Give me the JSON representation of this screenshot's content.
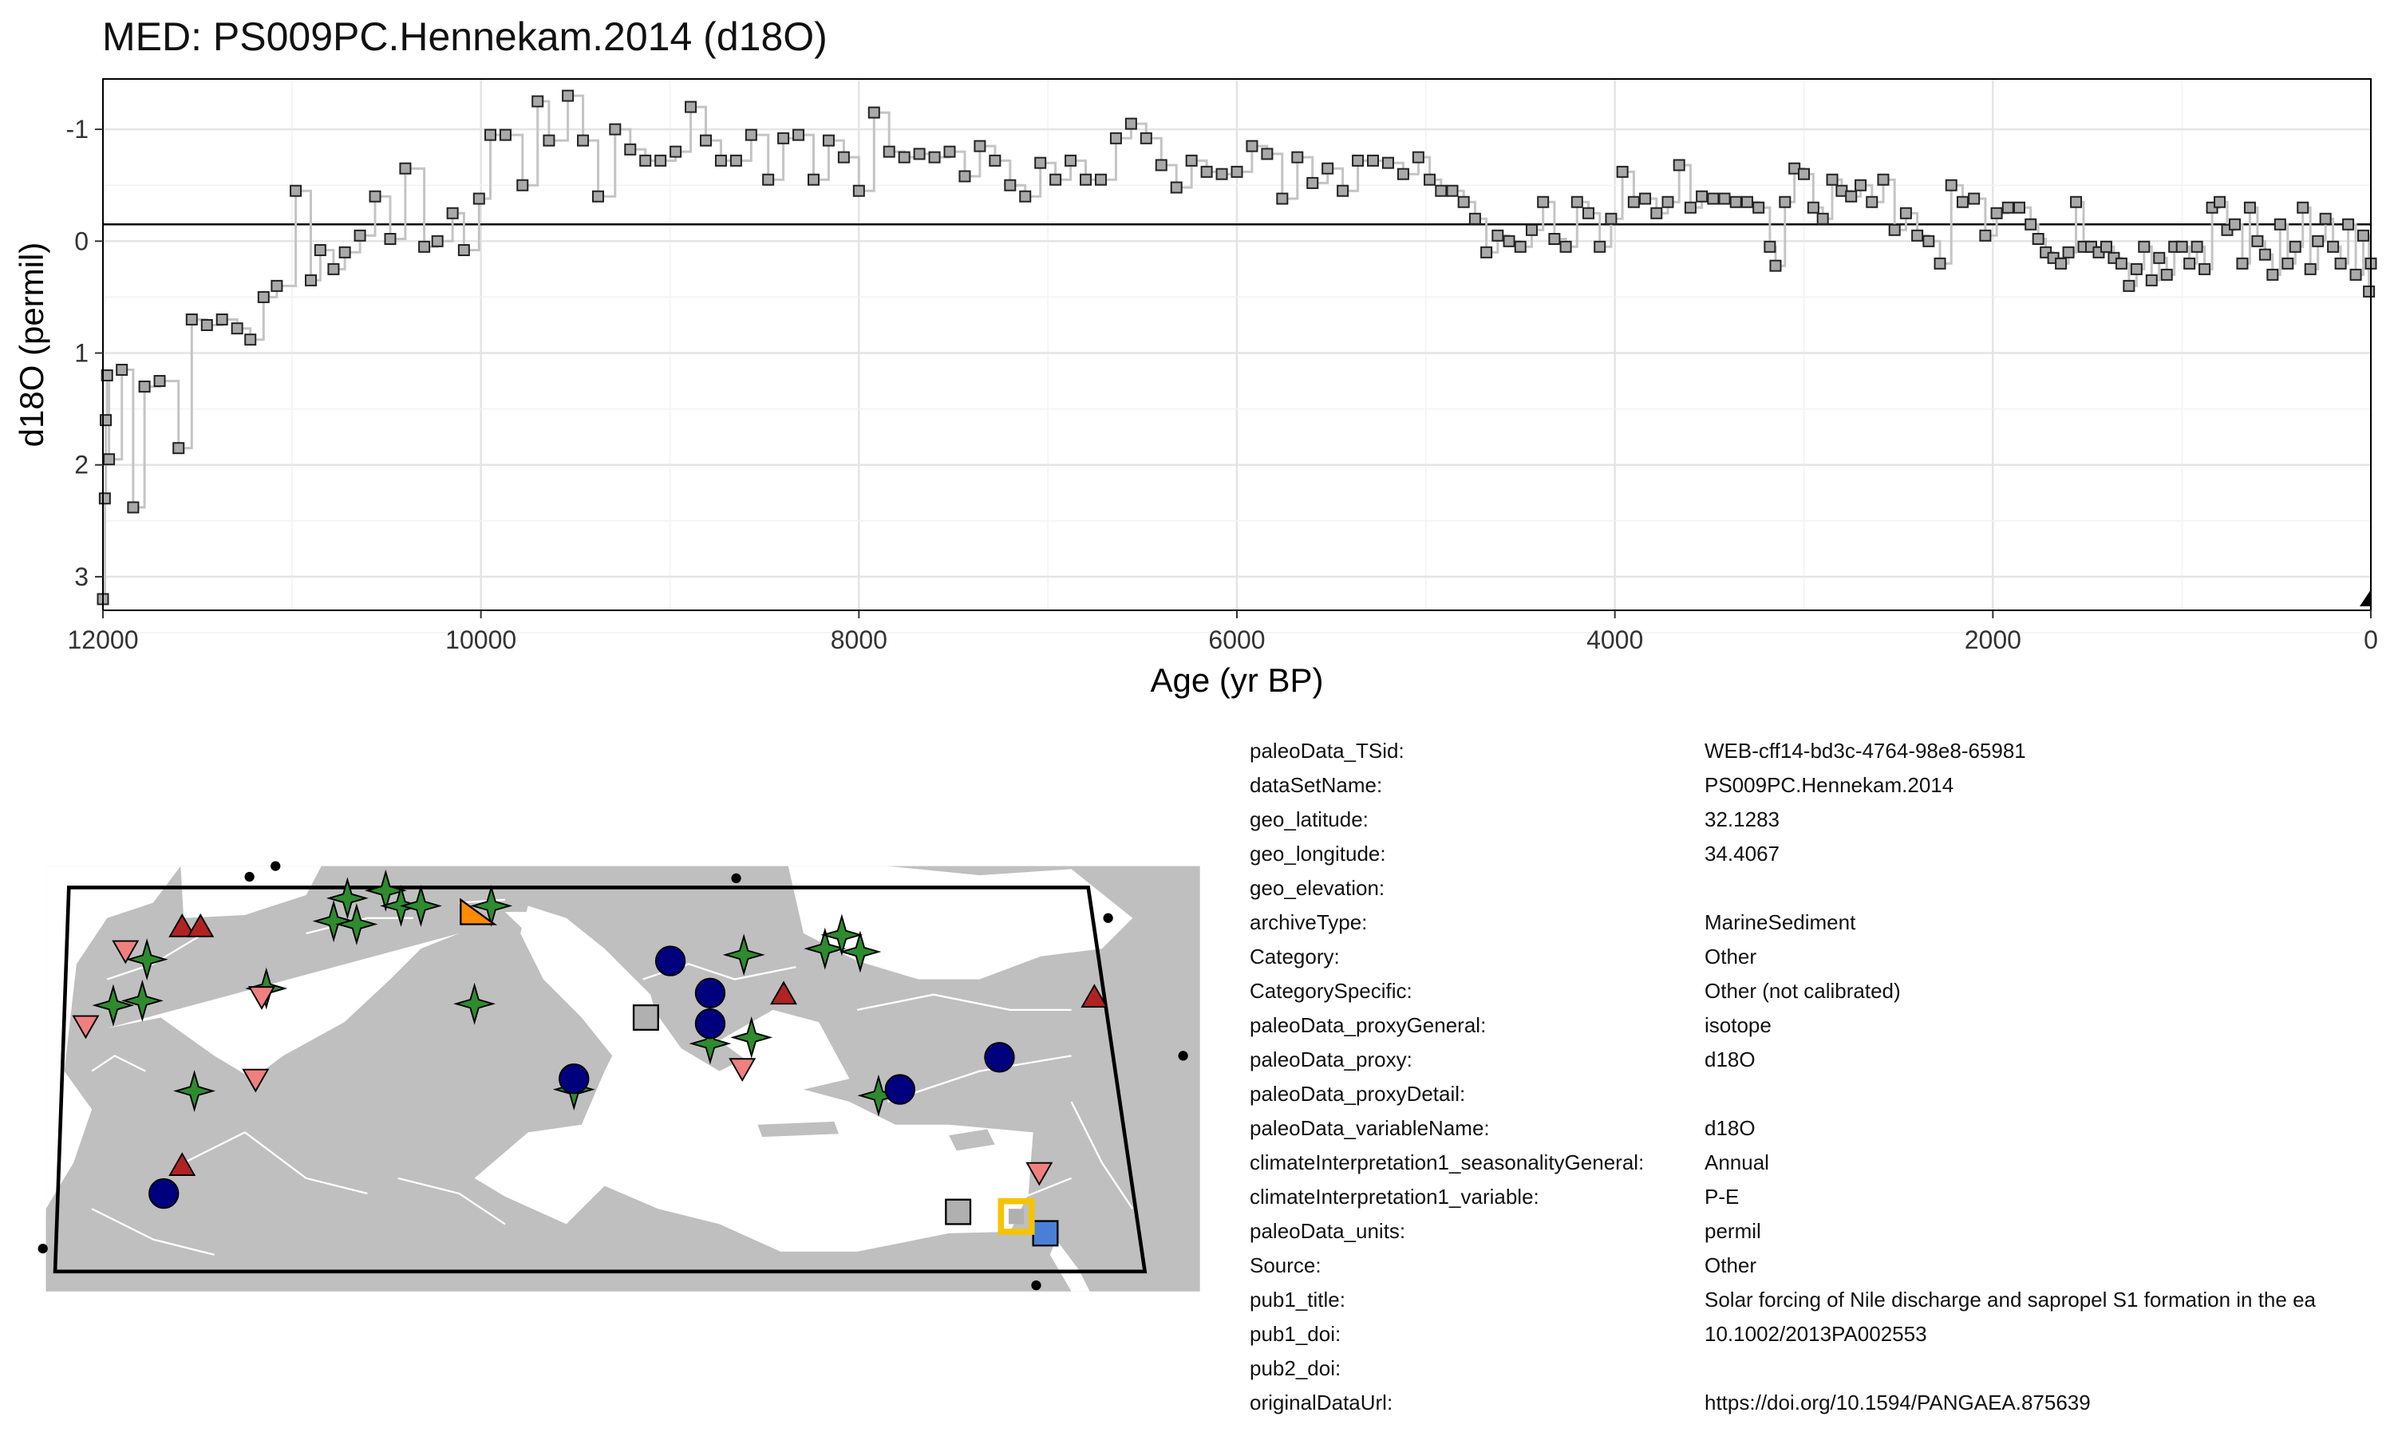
{
  "title": "MED: PS009PC.Hennekam.2014 (d18O)",
  "chart_data": {
    "type": "line",
    "xlabel": "Age (yr BP)",
    "ylabel": "d18O (permil)",
    "xlim": [
      12000,
      0
    ],
    "ylim": [
      3.3,
      -1.45
    ],
    "x_reversed": true,
    "y_reversed": true,
    "x_ticks": [
      "12000",
      "10000",
      "8000",
      "6000",
      "4000",
      "2000",
      "0"
    ],
    "y_ticks": [
      "-1",
      "0",
      "1",
      "2",
      "3"
    ],
    "grid": true,
    "reference_line_y": -0.15,
    "series": [
      {
        "style": "step-line with gray square markers",
        "color": "#a0a0a0",
        "points": [
          [
            12000,
            3.2
          ],
          [
            11990,
            2.3
          ],
          [
            11985,
            1.6
          ],
          [
            11978,
            1.2
          ],
          [
            11968,
            1.95
          ],
          [
            11900,
            1.15
          ],
          [
            11840,
            2.38
          ],
          [
            11780,
            1.3
          ],
          [
            11700,
            1.25
          ],
          [
            11600,
            1.85
          ],
          [
            11530,
            0.7
          ],
          [
            11450,
            0.75
          ],
          [
            11370,
            0.7
          ],
          [
            11290,
            0.78
          ],
          [
            11220,
            0.88
          ],
          [
            11150,
            0.5
          ],
          [
            11080,
            0.4
          ],
          [
            10980,
            -0.45
          ],
          [
            10900,
            0.35
          ],
          [
            10850,
            0.08
          ],
          [
            10780,
            0.25
          ],
          [
            10720,
            0.1
          ],
          [
            10640,
            -0.05
          ],
          [
            10560,
            -0.4
          ],
          [
            10480,
            -0.02
          ],
          [
            10400,
            -0.65
          ],
          [
            10300,
            0.05
          ],
          [
            10230,
            0
          ],
          [
            10150,
            -0.25
          ],
          [
            10090,
            0.08
          ],
          [
            10010,
            -0.38
          ],
          [
            9950,
            -0.95
          ],
          [
            9870,
            -0.95
          ],
          [
            9780,
            -0.5
          ],
          [
            9700,
            -1.25
          ],
          [
            9640,
            -0.9
          ],
          [
            9540,
            -1.3
          ],
          [
            9460,
            -0.9
          ],
          [
            9380,
            -0.4
          ],
          [
            9290,
            -1
          ],
          [
            9210,
            -0.82
          ],
          [
            9130,
            -0.72
          ],
          [
            9050,
            -0.72
          ],
          [
            8970,
            -0.8
          ],
          [
            8890,
            -1.2
          ],
          [
            8810,
            -0.9
          ],
          [
            8730,
            -0.72
          ],
          [
            8650,
            -0.72
          ],
          [
            8570,
            -0.95
          ],
          [
            8480,
            -0.55
          ],
          [
            8400,
            -0.92
          ],
          [
            8320,
            -0.95
          ],
          [
            8240,
            -0.55
          ],
          [
            8160,
            -0.9
          ],
          [
            8080,
            -0.75
          ],
          [
            8000,
            -0.45
          ],
          [
            7920,
            -1.15
          ],
          [
            7840,
            -0.8
          ],
          [
            7760,
            -0.75
          ],
          [
            7680,
            -0.78
          ],
          [
            7600,
            -0.75
          ],
          [
            7520,
            -0.8
          ],
          [
            7440,
            -0.58
          ],
          [
            7360,
            -0.85
          ],
          [
            7280,
            -0.72
          ],
          [
            7200,
            -0.5
          ],
          [
            7120,
            -0.4
          ],
          [
            7040,
            -0.7
          ],
          [
            6960,
            -0.55
          ],
          [
            6880,
            -0.72
          ],
          [
            6800,
            -0.55
          ],
          [
            6720,
            -0.55
          ],
          [
            6640,
            -0.92
          ],
          [
            6560,
            -1.05
          ],
          [
            6480,
            -0.92
          ],
          [
            6400,
            -0.68
          ],
          [
            6320,
            -0.48
          ],
          [
            6240,
            -0.72
          ],
          [
            6160,
            -0.62
          ],
          [
            6080,
            -0.6
          ],
          [
            6000,
            -0.62
          ],
          [
            5920,
            -0.85
          ],
          [
            5840,
            -0.78
          ],
          [
            5760,
            -0.38
          ],
          [
            5680,
            -0.75
          ],
          [
            5600,
            -0.52
          ],
          [
            5520,
            -0.65
          ],
          [
            5440,
            -0.45
          ],
          [
            5360,
            -0.72
          ],
          [
            5280,
            -0.72
          ],
          [
            5200,
            -0.7
          ],
          [
            5120,
            -0.6
          ],
          [
            5040,
            -0.75
          ],
          [
            4980,
            -0.55
          ],
          [
            4920,
            -0.45
          ],
          [
            4860,
            -0.45
          ],
          [
            4800,
            -0.35
          ],
          [
            4740,
            -0.2
          ],
          [
            4680,
            0.1
          ],
          [
            4620,
            -0.05
          ],
          [
            4560,
            0
          ],
          [
            4500,
            0.05
          ],
          [
            4440,
            -0.1
          ],
          [
            4380,
            -0.35
          ],
          [
            4320,
            -0.02
          ],
          [
            4260,
            0.05
          ],
          [
            4200,
            -0.35
          ],
          [
            4140,
            -0.25
          ],
          [
            4080,
            0.05
          ],
          [
            4020,
            -0.2
          ],
          [
            3960,
            -0.62
          ],
          [
            3900,
            -0.35
          ],
          [
            3840,
            -0.38
          ],
          [
            3780,
            -0.25
          ],
          [
            3720,
            -0.35
          ],
          [
            3660,
            -0.68
          ],
          [
            3600,
            -0.3
          ],
          [
            3540,
            -0.4
          ],
          [
            3480,
            -0.38
          ],
          [
            3420,
            -0.38
          ],
          [
            3360,
            -0.35
          ],
          [
            3300,
            -0.35
          ],
          [
            3240,
            -0.3
          ],
          [
            3180,
            0.05
          ],
          [
            3150,
            0.22
          ],
          [
            3100,
            -0.35
          ],
          [
            3050,
            -0.65
          ],
          [
            3000,
            -0.6
          ],
          [
            2950,
            -0.3
          ],
          [
            2900,
            -0.2
          ],
          [
            2850,
            -0.55
          ],
          [
            2800,
            -0.45
          ],
          [
            2750,
            -0.4
          ],
          [
            2700,
            -0.5
          ],
          [
            2640,
            -0.35
          ],
          [
            2580,
            -0.55
          ],
          [
            2520,
            -0.1
          ],
          [
            2460,
            -0.25
          ],
          [
            2400,
            -0.05
          ],
          [
            2340,
            0
          ],
          [
            2280,
            0.2
          ],
          [
            2220,
            -0.5
          ],
          [
            2160,
            -0.35
          ],
          [
            2100,
            -0.38
          ],
          [
            2040,
            -0.05
          ],
          [
            1980,
            -0.25
          ],
          [
            1920,
            -0.3
          ],
          [
            1860,
            -0.3
          ],
          [
            1800,
            -0.15
          ],
          [
            1760,
            -0.02
          ],
          [
            1720,
            0.1
          ],
          [
            1680,
            0.15
          ],
          [
            1640,
            0.2
          ],
          [
            1600,
            0.1
          ],
          [
            1560,
            -0.35
          ],
          [
            1520,
            0.05
          ],
          [
            1480,
            0.05
          ],
          [
            1440,
            0.1
          ],
          [
            1400,
            0.05
          ],
          [
            1360,
            0.15
          ],
          [
            1320,
            0.2
          ],
          [
            1280,
            0.4
          ],
          [
            1240,
            0.25
          ],
          [
            1200,
            0.05
          ],
          [
            1160,
            0.35
          ],
          [
            1120,
            0.15
          ],
          [
            1080,
            0.3
          ],
          [
            1040,
            0.05
          ],
          [
            1000,
            0.05
          ],
          [
            960,
            0.2
          ],
          [
            920,
            0.05
          ],
          [
            880,
            0.25
          ],
          [
            840,
            -0.3
          ],
          [
            800,
            -0.35
          ],
          [
            760,
            -0.1
          ],
          [
            720,
            -0.15
          ],
          [
            680,
            0.2
          ],
          [
            640,
            -0.3
          ],
          [
            600,
            0
          ],
          [
            560,
            0.12
          ],
          [
            520,
            0.3
          ],
          [
            480,
            -0.15
          ],
          [
            440,
            0.2
          ],
          [
            400,
            0.05
          ],
          [
            360,
            -0.3
          ],
          [
            320,
            0.25
          ],
          [
            280,
            0
          ],
          [
            240,
            -0.2
          ],
          [
            200,
            0.05
          ],
          [
            160,
            0.2
          ],
          [
            120,
            -0.15
          ],
          [
            80,
            0.3
          ],
          [
            40,
            -0.05
          ],
          [
            10,
            0.45
          ],
          [
            0,
            0.2
          ]
        ]
      }
    ],
    "markers": [
      {
        "x": 0,
        "y": 3.2,
        "shape": "triangle",
        "color": "#000000"
      }
    ]
  },
  "map": {
    "land_color": "#bfbfbf",
    "sea_color": "#ffffff",
    "frame_color": "#000000",
    "sites": [
      {
        "type": "star",
        "color": "#2e8b2e",
        "x": 227,
        "y": 587
      },
      {
        "type": "star",
        "color": "#2e8b2e",
        "x": 218,
        "y": 602
      },
      {
        "type": "star",
        "color": "#2e8b2e",
        "x": 233,
        "y": 604
      },
      {
        "type": "star",
        "color": "#2e8b2e",
        "x": 252,
        "y": 582
      },
      {
        "type": "star",
        "color": "#2e8b2e",
        "x": 262,
        "y": 592
      },
      {
        "type": "star",
        "color": "#2e8b2e",
        "x": 275,
        "y": 592
      },
      {
        "type": "star",
        "color": "#2e8b2e",
        "x": 321,
        "y": 592
      },
      {
        "type": "star",
        "color": "#2e8b2e",
        "x": 96,
        "y": 627
      },
      {
        "type": "star",
        "color": "#2e8b2e",
        "x": 74,
        "y": 657
      },
      {
        "type": "star",
        "color": "#2e8b2e",
        "x": 93,
        "y": 654
      },
      {
        "type": "star",
        "color": "#2e8b2e",
        "x": 174,
        "y": 646
      },
      {
        "type": "star",
        "color": "#2e8b2e",
        "x": 310,
        "y": 656
      },
      {
        "type": "star",
        "color": "#2e8b2e",
        "x": 127,
        "y": 713
      },
      {
        "type": "star",
        "color": "#2e8b2e",
        "x": 375,
        "y": 712
      },
      {
        "type": "star",
        "color": "#2e8b2e",
        "x": 486,
        "y": 624
      },
      {
        "type": "star",
        "color": "#2e8b2e",
        "x": 539,
        "y": 620
      },
      {
        "type": "star",
        "color": "#2e8b2e",
        "x": 550,
        "y": 611
      },
      {
        "type": "star",
        "color": "#2e8b2e",
        "x": 562,
        "y": 622
      },
      {
        "type": "star",
        "color": "#2e8b2e",
        "x": 464,
        "y": 682
      },
      {
        "type": "star",
        "color": "#2e8b2e",
        "x": 491,
        "y": 678
      },
      {
        "type": "star",
        "color": "#2e8b2e",
        "x": 574,
        "y": 716
      },
      {
        "type": "circle",
        "color": "#00007f",
        "x": 438,
        "y": 628
      },
      {
        "type": "circle",
        "color": "#00007f",
        "x": 464,
        "y": 649
      },
      {
        "type": "circle",
        "color": "#00007f",
        "x": 464,
        "y": 669
      },
      {
        "type": "circle",
        "color": "#00007f",
        "x": 375,
        "y": 705
      },
      {
        "type": "circle",
        "color": "#00007f",
        "x": 588,
        "y": 712
      },
      {
        "type": "circle",
        "color": "#00007f",
        "x": 653,
        "y": 691
      },
      {
        "type": "circle",
        "color": "#00007f",
        "x": 107,
        "y": 780
      },
      {
        "type": "triangle-up",
        "color": "#b22222",
        "x": 119,
        "y": 606
      },
      {
        "type": "triangle-up",
        "color": "#b22222",
        "x": 131,
        "y": 606
      },
      {
        "type": "triangle-up",
        "color": "#b22222",
        "x": 512,
        "y": 650
      },
      {
        "type": "triangle-up",
        "color": "#b22222",
        "x": 715,
        "y": 652
      },
      {
        "type": "triangle-up",
        "color": "#b22222",
        "x": 119,
        "y": 762
      },
      {
        "type": "triangle-down",
        "color": "#f08080",
        "x": 82,
        "y": 621
      },
      {
        "type": "triangle-down",
        "color": "#f08080",
        "x": 56,
        "y": 670
      },
      {
        "type": "triangle-down",
        "color": "#f08080",
        "x": 171,
        "y": 651
      },
      {
        "type": "triangle-down",
        "color": "#f08080",
        "x": 167,
        "y": 705
      },
      {
        "type": "triangle-down",
        "color": "#f08080",
        "x": 485,
        "y": 698
      },
      {
        "type": "triangle-down",
        "color": "#f08080",
        "x": 679,
        "y": 766
      },
      {
        "type": "square",
        "color": "#b0b0b0",
        "x": 422,
        "y": 665
      },
      {
        "type": "square",
        "color": "#b0b0b0",
        "x": 626,
        "y": 792
      },
      {
        "type": "square",
        "color": "#4a7fd6",
        "x": 683,
        "y": 806
      },
      {
        "type": "half-triangle",
        "color": "#ff8c00",
        "x": 311,
        "y": 596
      }
    ],
    "highlight": {
      "x": 664,
      "y": 795,
      "color": "#f5c400"
    },
    "corner_dots": [
      [
        163,
        573
      ],
      [
        180,
        566
      ],
      [
        481,
        574
      ],
      [
        724,
        600
      ],
      [
        773,
        690
      ],
      [
        28,
        816
      ],
      [
        677,
        840
      ]
    ]
  },
  "meta": [
    {
      "key": "paleoData_TSid:",
      "value": "WEB-cff14-bd3c-4764-98e8-65981"
    },
    {
      "key": "dataSetName:",
      "value": "PS009PC.Hennekam.2014"
    },
    {
      "key": "geo_latitude:",
      "value": "32.1283"
    },
    {
      "key": "geo_longitude:",
      "value": "34.4067"
    },
    {
      "key": "geo_elevation:",
      "value": ""
    },
    {
      "key": "archiveType:",
      "value": "MarineSediment"
    },
    {
      "key": "Category:",
      "value": "Other"
    },
    {
      "key": "CategorySpecific:",
      "value": "Other (not calibrated)"
    },
    {
      "key": "paleoData_proxyGeneral:",
      "value": "isotope"
    },
    {
      "key": "paleoData_proxy:",
      "value": "d18O"
    },
    {
      "key": "paleoData_proxyDetail:",
      "value": ""
    },
    {
      "key": "paleoData_variableName:",
      "value": "d18O"
    },
    {
      "key": "climateInterpretation1_seasonalityGeneral:",
      "value": "Annual"
    },
    {
      "key": "climateInterpretation1_variable:",
      "value": "P-E"
    },
    {
      "key": "paleoData_units:",
      "value": "permil"
    },
    {
      "key": "Source:",
      "value": "Other"
    },
    {
      "key": "pub1_title:",
      "value": "Solar forcing of Nile discharge and sapropel S1 formation in the ea"
    },
    {
      "key": "pub1_doi:",
      "value": "10.1002/2013PA002553"
    },
    {
      "key": "pub2_doi:",
      "value": ""
    },
    {
      "key": "originalDataUrl:",
      "value": "https://doi.org/10.1594/PANGAEA.875639"
    }
  ]
}
